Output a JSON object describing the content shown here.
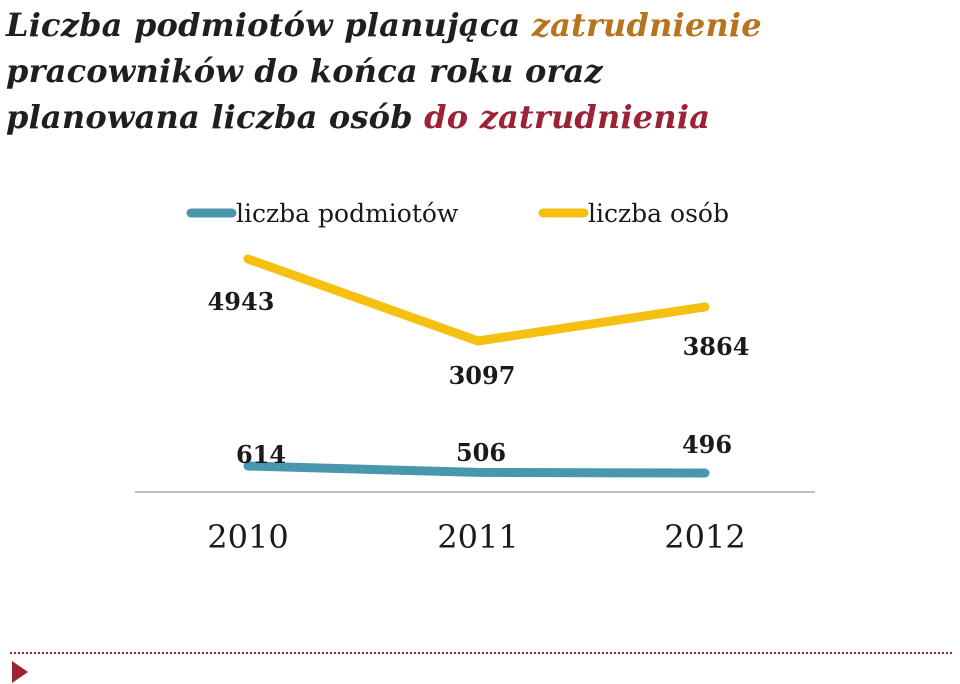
{
  "title": {
    "line1_plain": "Liczba podmiotów planująca ",
    "line1_highlight": "zatrudnienie",
    "line2": "pracowników do końca roku oraz",
    "line3_plain": "planowana liczba osób ",
    "line3_highlight": "do zatrudnienia",
    "highlight_colors": [
      "#b8731e",
      "#9b2335"
    ]
  },
  "chart_data": {
    "type": "line",
    "categories": [
      "2010",
      "2011",
      "2012"
    ],
    "series": [
      {
        "name": "liczba podmiotów",
        "values": [
          614,
          506,
          496
        ],
        "color": "#4a97ad"
      },
      {
        "name": "liczba osób",
        "values": [
          4943,
          3097,
          3864
        ],
        "color": "#f5c00f"
      }
    ],
    "legend_position": "top",
    "grid": false,
    "y_axis_visible": false
  },
  "footer": {
    "accent_color": "#9b2335",
    "icon": "triangle-bullet-icon"
  }
}
